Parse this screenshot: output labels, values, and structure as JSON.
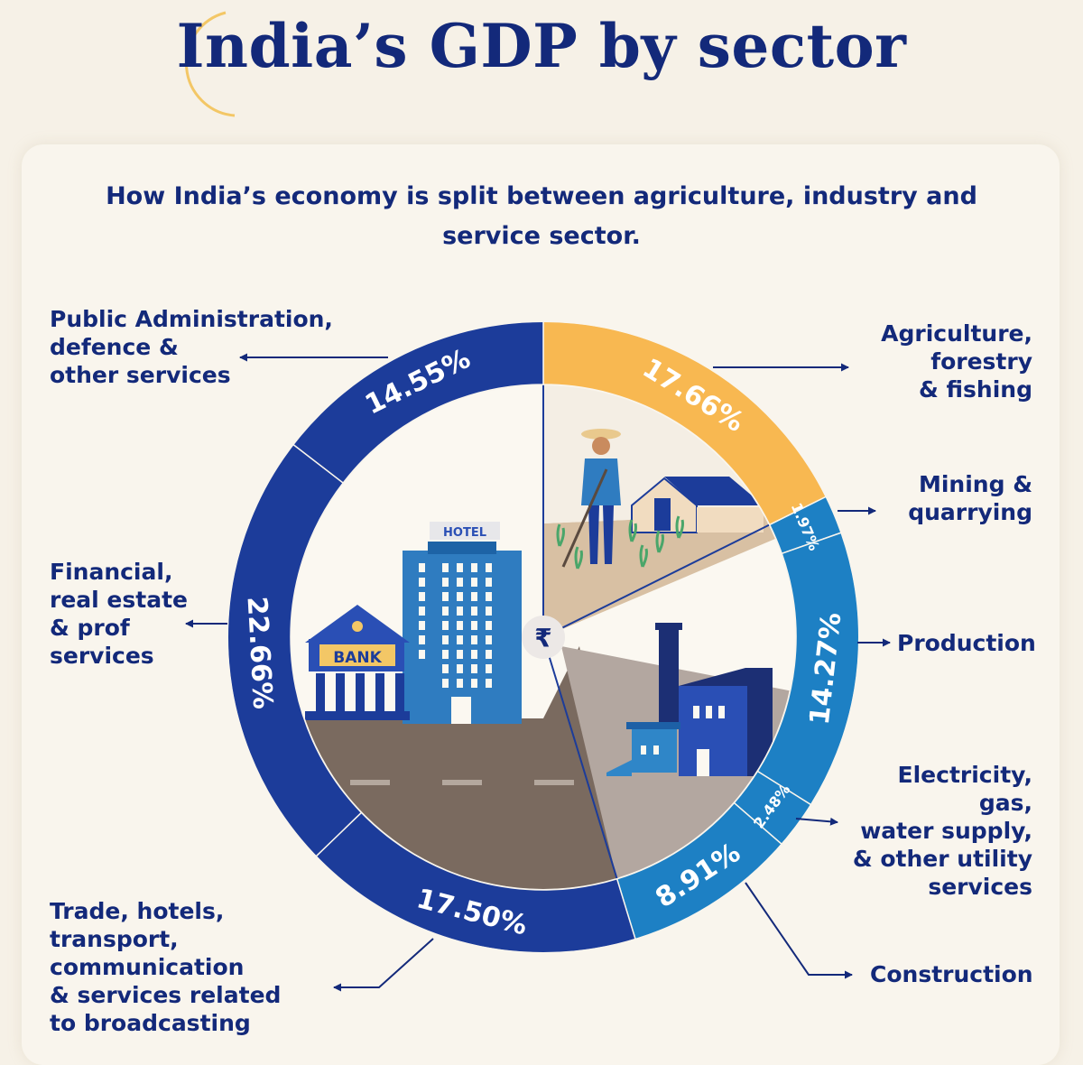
{
  "title": "India’s GDP by sector",
  "subtitle": "How India’s economy is split between agriculture, industry and service sector.",
  "colors": {
    "navy": "#1c3c9a",
    "agriculture": "#f8b851",
    "industry_blue": "#1d80c4",
    "text": "#13297a",
    "accent_gold": "#f3c766"
  },
  "center_icon": "rupee-icon",
  "center_symbol": "₹",
  "illustration": {
    "hotel_sign": "HOTEL",
    "bank_sign": "BANK"
  },
  "chart_data": {
    "type": "pie",
    "style": "donut",
    "unit": "%",
    "slices": [
      {
        "label": "Agriculture,\nforestry\n& fishing",
        "value": 17.66,
        "display": "17.66%",
        "color": "#f8b851"
      },
      {
        "label": "Mining &\nquarrying",
        "value": 1.97,
        "display": "1.97%",
        "color": "#1d80c4"
      },
      {
        "label": "Production",
        "value": 14.27,
        "display": "14.27%",
        "color": "#1d80c4"
      },
      {
        "label": "Electricity,\ngas,\nwater supply,\n& other utility\nservices",
        "value": 2.48,
        "display": "2.48%",
        "color": "#1d80c4"
      },
      {
        "label": "Construction",
        "value": 8.91,
        "display": "8.91%",
        "color": "#1d80c4"
      },
      {
        "label": "Trade, hotels,\ntransport,\ncommunication\n& services related\nto broadcasting",
        "value": 17.5,
        "display": "17.50%",
        "color": "#1c3c9a"
      },
      {
        "label": "Financial,\nreal estate\n& prof\nservices",
        "value": 22.66,
        "display": "22.66%",
        "color": "#1c3c9a"
      },
      {
        "label": "Public Administration,\ndefence &\nother services",
        "value": 14.55,
        "display": "14.55%",
        "color": "#1c3c9a"
      }
    ]
  }
}
